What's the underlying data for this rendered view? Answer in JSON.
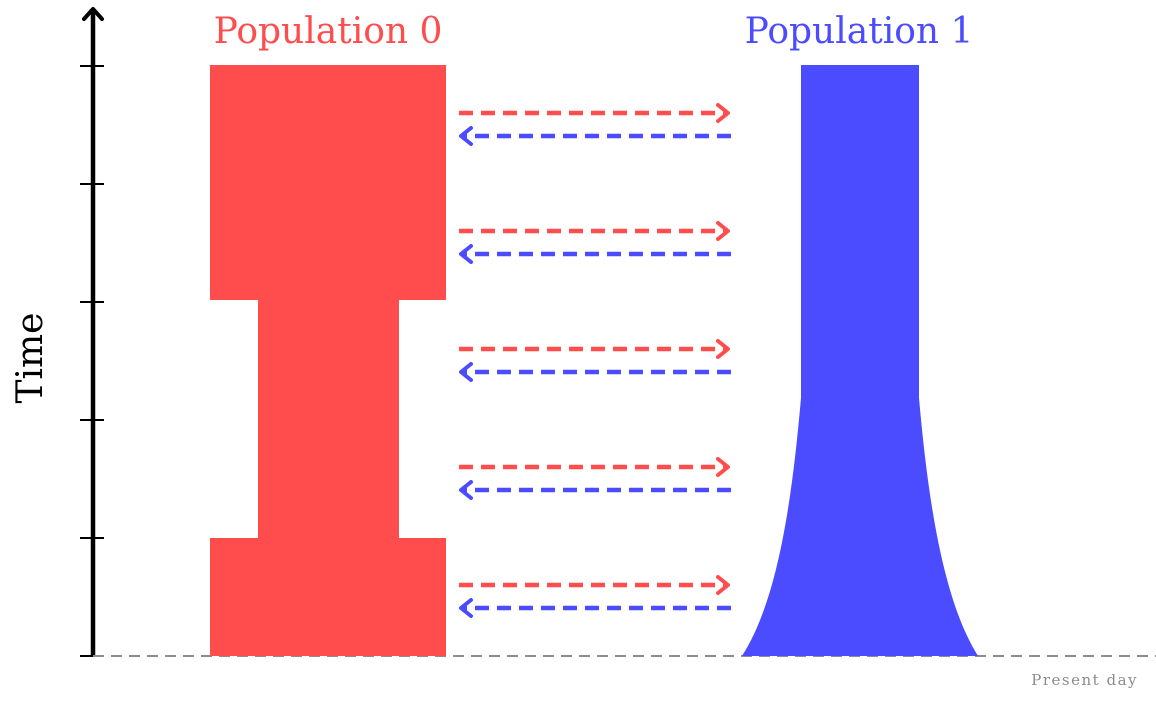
{
  "axis": {
    "label": "Time",
    "footer_label": "Present day"
  },
  "populations": [
    {
      "name": "Population 0",
      "color": "#ff4d4d",
      "shape": "bottleneck"
    },
    {
      "name": "Population 1",
      "color": "#4b4bff",
      "shape": "exponential-growth"
    }
  ],
  "migration": {
    "pairs": 5,
    "forward_color": "#ff4d4d",
    "backward_color": "#4b4bff"
  },
  "colors": {
    "axis": "#000000",
    "present_line": "#8c8c8c",
    "footer_text": "#8c8c8c"
  }
}
